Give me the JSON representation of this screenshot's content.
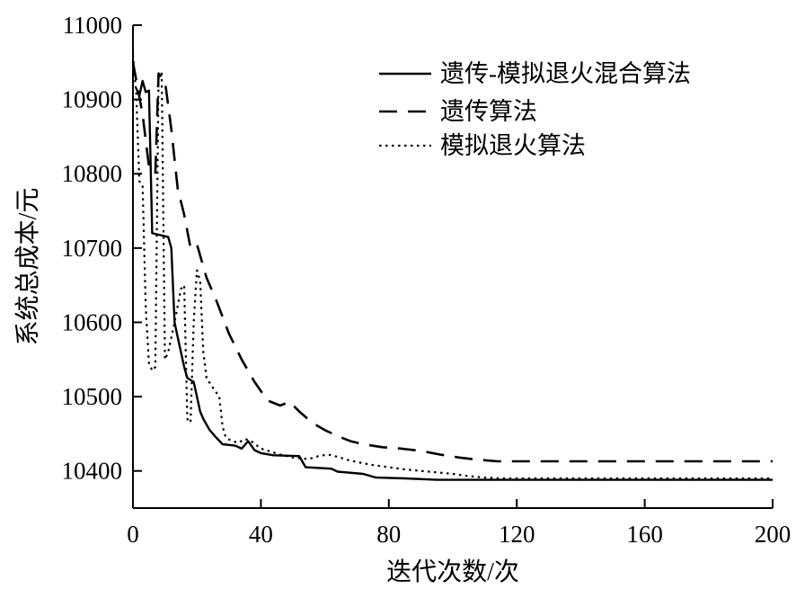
{
  "chart_data": {
    "type": "line",
    "title": "",
    "xlabel": "迭代次数/次",
    "ylabel": "系统总成本/元",
    "xlim": [
      0,
      200
    ],
    "ylim": [
      10350,
      11000
    ],
    "x_ticks": [
      0,
      40,
      80,
      120,
      160,
      200
    ],
    "y_ticks": [
      10400,
      10500,
      10600,
      10700,
      10800,
      10900,
      11000
    ],
    "grid": false,
    "legend_position": "top-right-inside",
    "colors": {
      "line": "#000000",
      "background": "#ffffff"
    },
    "series": [
      {
        "name": "遗传-模拟退火混合算法",
        "style": "solid",
        "x": [
          1,
          2,
          3,
          4,
          5,
          6,
          8,
          11,
          12,
          13,
          14,
          15,
          16,
          17,
          19,
          20,
          21,
          22,
          24,
          26,
          28,
          32,
          34,
          36,
          38,
          40,
          44,
          52,
          54,
          62,
          64,
          72,
          76,
          85,
          95,
          120,
          200
        ],
        "y": [
          10915,
          10905,
          10925,
          10910,
          10912,
          10720,
          10718,
          10715,
          10700,
          10600,
          10580,
          10560,
          10540,
          10525,
          10520,
          10500,
          10480,
          10470,
          10455,
          10445,
          10436,
          10434,
          10430,
          10440,
          10428,
          10424,
          10421,
          10420,
          10405,
          10403,
          10399,
          10396,
          10391,
          10390,
          10388,
          10388,
          10388
        ]
      },
      {
        "name": "遗传算法",
        "style": "dashed",
        "x": [
          0,
          3,
          5,
          7,
          8,
          10,
          12,
          14,
          16,
          18,
          20,
          23,
          26,
          30,
          34,
          38,
          42,
          46,
          49,
          52,
          56,
          60,
          64,
          68,
          72,
          78,
          84,
          90,
          96,
          102,
          108,
          114,
          120,
          200
        ],
        "y": [
          10950,
          10880,
          10810,
          10800,
          10935,
          10925,
          10860,
          10780,
          10745,
          10700,
          10705,
          10660,
          10630,
          10585,
          10550,
          10520,
          10495,
          10488,
          10493,
          10480,
          10465,
          10455,
          10447,
          10440,
          10436,
          10432,
          10430,
          10427,
          10422,
          10418,
          10415,
          10413,
          10413,
          10413
        ]
      },
      {
        "name": "模拟退火算法",
        "style": "dotted",
        "x": [
          0,
          1,
          2,
          3,
          4,
          5,
          6,
          7,
          8,
          9,
          10,
          11,
          13,
          15,
          16,
          17,
          18,
          19,
          20,
          21,
          22,
          23,
          25,
          27,
          28,
          29,
          31,
          33,
          35,
          37,
          40,
          43,
          46,
          50,
          55,
          58,
          61,
          64,
          67,
          70,
          75,
          80,
          85,
          90,
          95,
          100,
          105,
          110,
          115,
          120,
          200
        ],
        "y": [
          10960,
          10910,
          10790,
          10785,
          10620,
          10545,
          10535,
          10540,
          10930,
          10935,
          10550,
          10560,
          10600,
          10645,
          10650,
          10470,
          10465,
          10600,
          10670,
          10655,
          10560,
          10525,
          10512,
          10500,
          10460,
          10445,
          10440,
          10438,
          10443,
          10440,
          10430,
          10426,
          10422,
          10418,
          10416,
          10420,
          10422,
          10419,
          10415,
          10412,
          10408,
          10405,
          10402,
          10400,
          10398,
          10396,
          10393,
          10391,
          10390,
          10390,
          10390
        ]
      }
    ]
  }
}
